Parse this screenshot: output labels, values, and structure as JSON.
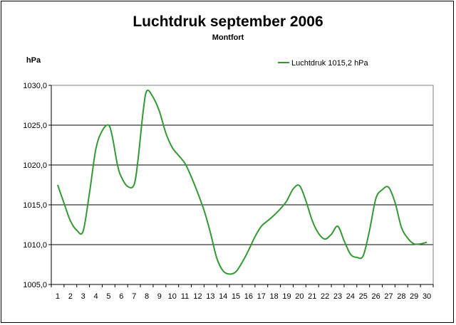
{
  "chart_data": {
    "type": "line",
    "title": "Luchtdruk september 2006",
    "subtitle": "Montfort",
    "ylabel": "hPa",
    "xlabel": "",
    "ylim": [
      1005,
      1030
    ],
    "y_ticks": [
      "1005,0",
      "1010,0",
      "1015,0",
      "1020,0",
      "1025,0",
      "1030,0"
    ],
    "categories": [
      "1",
      "2",
      "3",
      "4",
      "5",
      "6",
      "7",
      "8",
      "9",
      "10",
      "11",
      "12",
      "13",
      "14",
      "15",
      "16",
      "17",
      "18",
      "19",
      "20",
      "21",
      "22",
      "23",
      "24",
      "25",
      "26",
      "27",
      "28",
      "29",
      "30"
    ],
    "grid": "horizontal",
    "legend_position": "top-right",
    "series": [
      {
        "name": "Luchtdruk 1015,2 hPa",
        "color": "#339933",
        "x": [
          1,
          1.5,
          2,
          2.5,
          3,
          3.5,
          4,
          4.5,
          5,
          5.3,
          5.7,
          6,
          6.5,
          7,
          7.3,
          7.7,
          8,
          8.5,
          9,
          9.5,
          10,
          10.5,
          11,
          11.5,
          12,
          12.5,
          13,
          13.5,
          14,
          14.5,
          15,
          15.5,
          16,
          16.5,
          17,
          17.5,
          18,
          18.5,
          19,
          19.5,
          20,
          20.5,
          21,
          21.5,
          22,
          22.5,
          23,
          23.5,
          24,
          24.5,
          25,
          25.5,
          26,
          26.5,
          27,
          27.5,
          28,
          28.5,
          29,
          29.5,
          30
        ],
        "values": [
          1017.5,
          1015.2,
          1013.0,
          1011.8,
          1011.7,
          1016.5,
          1022.0,
          1024.3,
          1025.0,
          1023.5,
          1020.0,
          1018.5,
          1017.3,
          1017.5,
          1020.5,
          1026.5,
          1029.3,
          1028.5,
          1026.7,
          1024.0,
          1022.2,
          1021.2,
          1020.2,
          1018.5,
          1016.5,
          1014.3,
          1011.5,
          1008.3,
          1006.7,
          1006.3,
          1006.6,
          1007.8,
          1009.3,
          1011.0,
          1012.3,
          1013.0,
          1013.7,
          1014.5,
          1015.5,
          1017.0,
          1017.4,
          1015.5,
          1013.0,
          1011.4,
          1010.7,
          1011.3,
          1012.3,
          1010.5,
          1008.8,
          1008.4,
          1008.6,
          1011.8,
          1015.8,
          1016.9,
          1017.2,
          1015.3,
          1012.2,
          1010.8,
          1010.1,
          1010.1,
          1010.3
        ]
      }
    ]
  }
}
